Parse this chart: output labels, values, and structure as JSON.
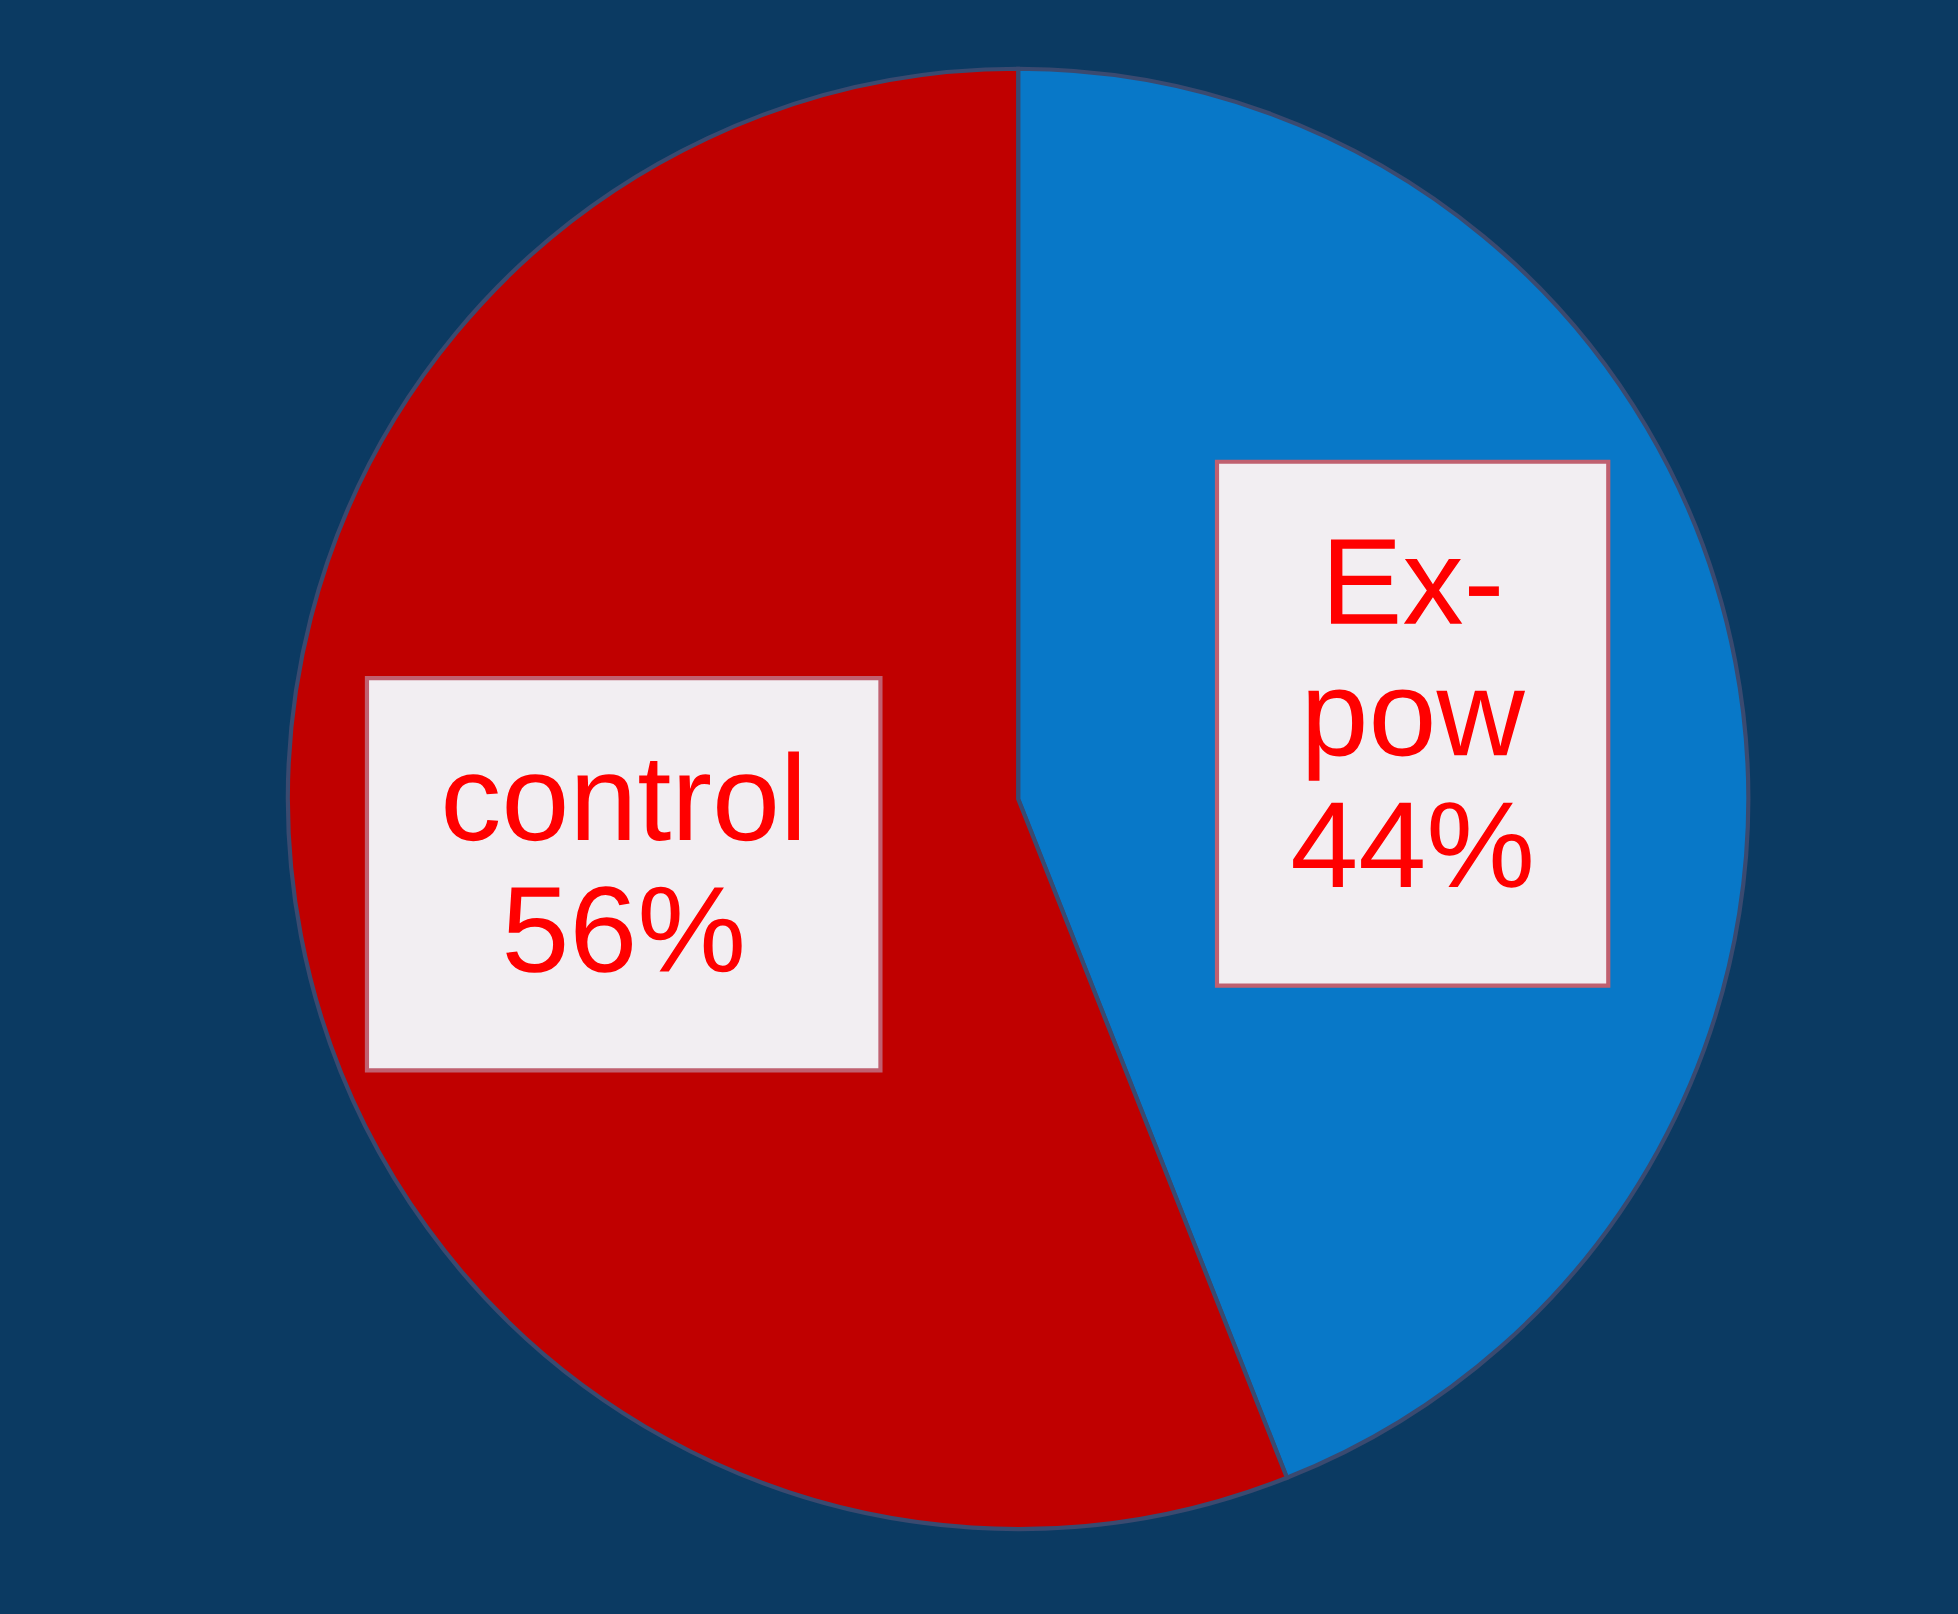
{
  "chart_data": {
    "type": "pie",
    "categories": [
      "Ex-pow",
      "control"
    ],
    "values": [
      44,
      56
    ],
    "value_labels": [
      "44%",
      "56%"
    ],
    "colors": [
      "#0878c8",
      "#c00000"
    ]
  }
}
